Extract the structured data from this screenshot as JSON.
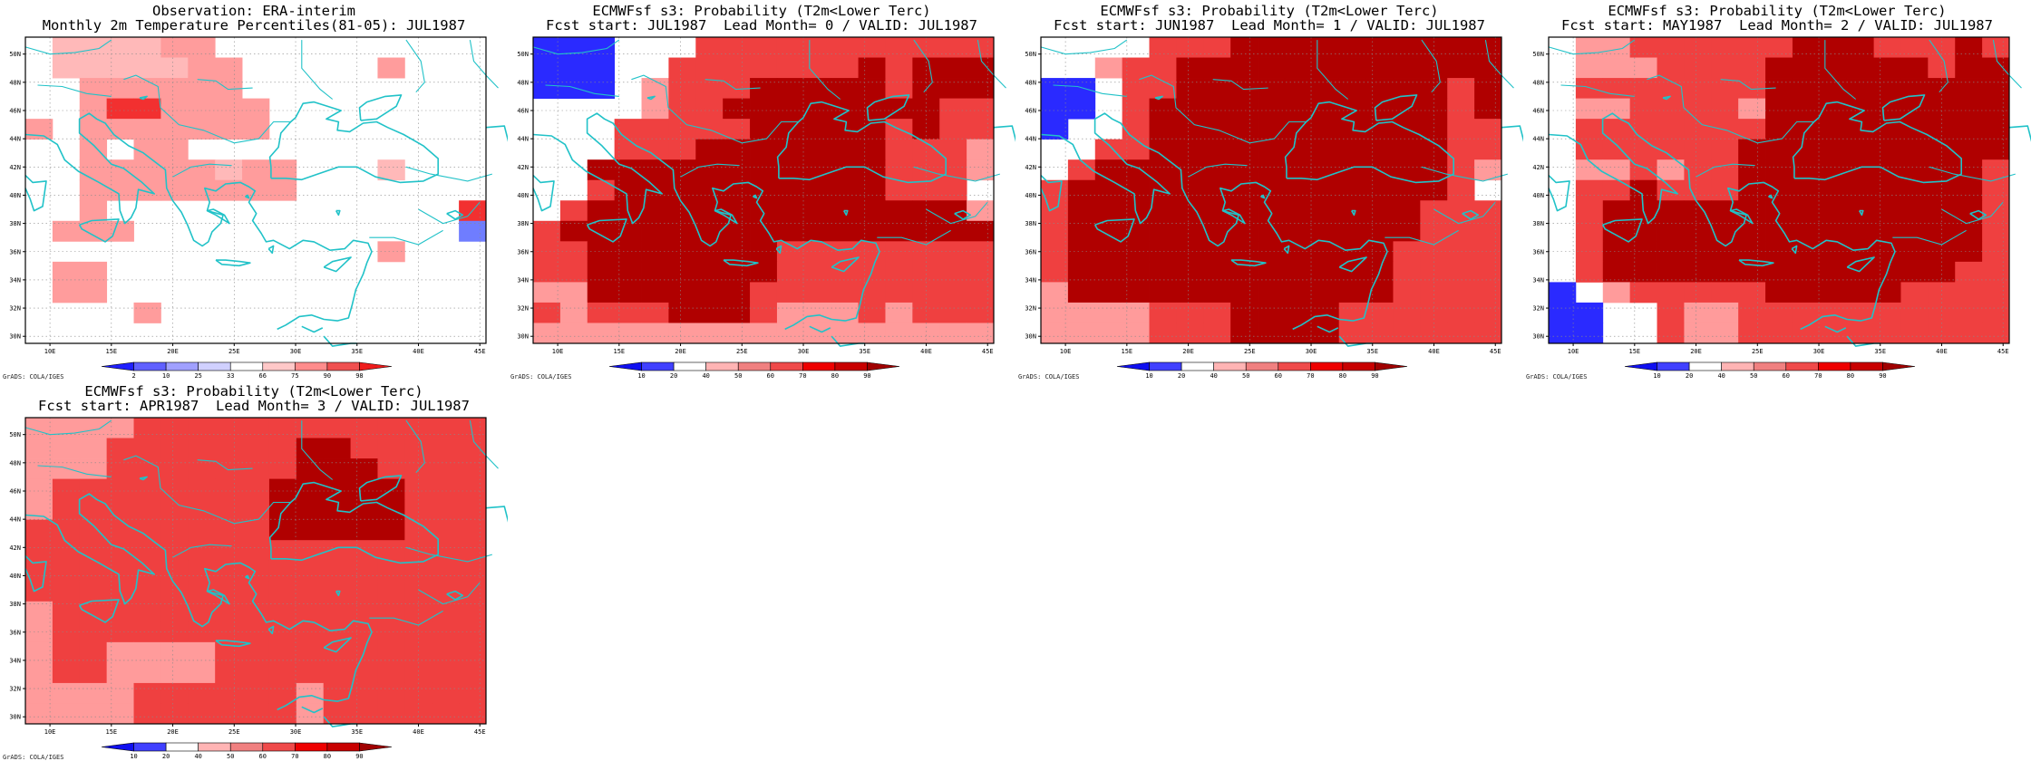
{
  "colorbar_obs": {
    "labels": [
      "2",
      "10",
      "25",
      "33",
      "66",
      "75",
      "90",
      "98"
    ],
    "colors": [
      "#2020ff",
      "#6060ff",
      "#a0a0ff",
      "#d0d0ff",
      "#ffffff",
      "#ffc8c8",
      "#ff8c8c",
      "#f05050",
      "#ee1c1c"
    ]
  },
  "colorbar_prob": {
    "labels": [
      "10",
      "20",
      "40",
      "50",
      "60",
      "70",
      "80",
      "90"
    ],
    "colors": [
      "#1010f0",
      "#4040ff",
      "#ffffff",
      "#ffb4b4",
      "#f08080",
      "#ef4a4a",
      "#ee0000",
      "#c80000",
      "#a00000"
    ]
  },
  "lat_labels": [
    "50N",
    "48N",
    "46N",
    "44N",
    "42N",
    "40N",
    "38N",
    "36N",
    "34N",
    "32N",
    "30N"
  ],
  "lon_labels": [
    "10E",
    "15E",
    "20E",
    "25E",
    "30E",
    "35E",
    "40E",
    "45E"
  ],
  "panels": [
    {
      "title1": "Observation: ERA-interim",
      "title2": "Monthly 2m Temperature Percentiles(81-05): JUL1987",
      "credit": "GrADS: COLA/IGES",
      "bar": "obs",
      "grid": [
        "03333220000000000",
        "03333322000002000",
        "00222222000000000",
        "00288222200000000",
        "20222222200000000",
        "00202200000000000",
        "00222223220003000",
        "00222222220000000",
        "00200000000000008",
        "02220000000000007",
        "00000000000002000",
        "02200000000000000",
        "02200000000000000",
        "00002000000000000",
        "00000000000000000"
      ]
    },
    {
      "title1": "ECMWFsf s3: Probability (T2m<Lower Terc)",
      "title2": "Fcst start: JUL1987  Lead Month= 0 / VALID: JUL1987",
      "credit": "GrADS: COLA/IGES",
      "bar": "prob",
      "grid": [
        "11100033333333333",
        "11100333333343444",
        "11102333444443444",
        "00002334444444433",
        "00033333444443433",
        "00033344444443332",
        "00444444444443332",
        "00344444444443330",
        "03444444444444442",
        "34444444444444444",
        "33444444433333333",
        "33444444433333333",
        "22444444333333333",
        "32333444322232333",
        "22222222222222222"
      ]
    },
    {
      "title1": "ECMWFsf s3: Probability (T2m<Lower Terc)",
      "title2": "Fcst start: JUN1987  Lead Month= 1 / VALID: JUL1987",
      "credit": "GrADS: COLA/IGES",
      "bar": "prob",
      "grid": [
        "00003334444444444",
        "00233444444444444",
        "11033444444444434",
        "11034444444444434",
        "10034444444444433",
        "00334444444444433",
        "03444444444444432",
        "34444444444444430",
        "34444444444444333",
        "34444444444444333",
        "34444444444443333",
        "34444444444443333",
        "24444444444443333",
        "22223334444333333",
        "22223334444333333"
      ]
    },
    {
      "title1": "ECMWFsf s3: Probability (T2m<Lower Terc)",
      "title2": "Fcst start: MAY1987  Lead Month= 2 / VALID: JUL1987",
      "credit": "GrADS: COLA/IGES",
      "bar": "prob",
      "grid": [
        "02233333344433343",
        "02223333444444344",
        "03333333444444444",
        "02233332444444444",
        "03333333444444444",
        "03333334444444444",
        "02232334444444443",
        "03343334444444443",
        "03444444444444443",
        "03444444444444443",
        "03444444444444443",
        "03444444444444433",
        "10233333444443333",
        "11003223333333333",
        "11003223333333333"
      ]
    },
    {
      "title1": "ECMWFsf s3: Probability (T2m<Lower Terc)",
      "title2": "Fcst start: APR1987  Lead Month= 3 / VALID: JUL1987",
      "credit": "GrADS: COLA/IGES",
      "bar": "prob",
      "grid": [
        "22223333333333333",
        "22233333334433333",
        "22233333334443333",
        "23333333344444333",
        "23333333344444333",
        "33333333344444333",
        "33333333333333333",
        "33333333333333333",
        "33333333333333333",
        "23333333333333333",
        "23333333333333333",
        "23322223333333333",
        "23322223333333333",
        "22223333332333333",
        "22223333332333333"
      ]
    }
  ]
}
